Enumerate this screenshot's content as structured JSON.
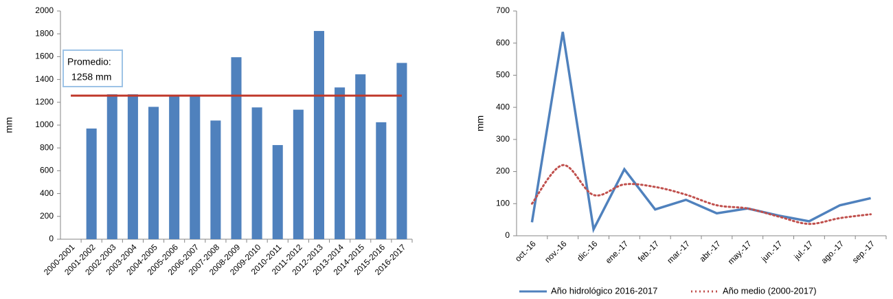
{
  "chart_data": [
    {
      "type": "bar",
      "ylabel": "mm",
      "categories": [
        "2000-2001",
        "2001-2002",
        "2002-2003",
        "2003-2004",
        "2004-2005",
        "2005-2006",
        "2006-2007",
        "2007-2008",
        "2008-2009",
        "2009-2010",
        "2010-2011",
        "2011-2012",
        "2012-2013",
        "2013-2014",
        "2014-2015",
        "2015-2016",
        "2016-2017"
      ],
      "values": [
        null,
        970,
        1270,
        1270,
        1160,
        1265,
        1265,
        1040,
        1595,
        1155,
        825,
        1135,
        1825,
        1330,
        1445,
        1025,
        1545
      ],
      "color": "#4f81bd",
      "ylim": [
        0,
        2000
      ],
      "yticks": [
        0,
        200,
        400,
        600,
        800,
        1000,
        1200,
        1400,
        1600,
        1800,
        2000
      ],
      "reference_line": {
        "value": 1258,
        "label": "1258 mm",
        "color": "#c0392b"
      },
      "annotation": "Promedio:"
    },
    {
      "type": "line",
      "ylabel": "mm",
      "categories": [
        "oct.-16",
        "nov.-16",
        "dic.-16",
        "ene.-17",
        "feb.-17",
        "mar.-17",
        "abr.-17",
        "may.-17",
        "jun.-17",
        "jul.-17",
        "ago.-17",
        "sep.-17"
      ],
      "series": [
        {
          "name": "Año hidrológico 2016-2017",
          "color": "#4f81bd",
          "dash": "solid",
          "smooth": false,
          "values": [
            42,
            635,
            20,
            207,
            82,
            112,
            70,
            85,
            63,
            45,
            95,
            117
          ]
        },
        {
          "name": "Año medio (2000-2017)",
          "color": "#c0504d",
          "dash": "dotted",
          "smooth": true,
          "values": [
            100,
            220,
            127,
            160,
            152,
            128,
            95,
            85,
            60,
            37,
            55,
            67
          ]
        }
      ],
      "ylim": [
        0,
        700
      ],
      "yticks": [
        0,
        100,
        200,
        300,
        400,
        500,
        600,
        700
      ],
      "legend": "bottom"
    }
  ]
}
